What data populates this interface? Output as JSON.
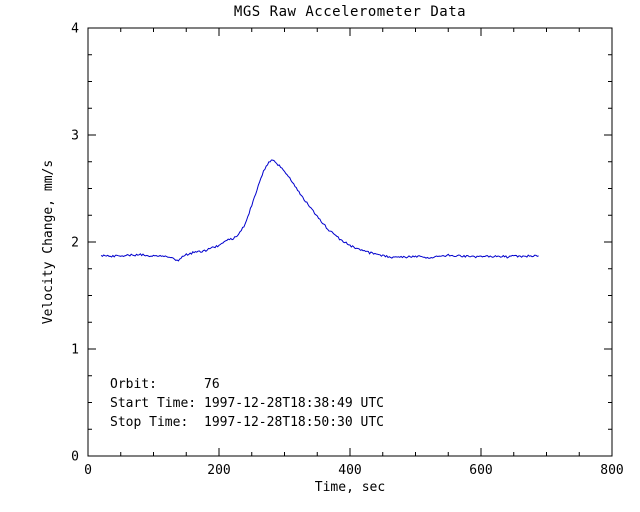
{
  "chart_data": {
    "type": "line",
    "title": "MGS Raw Accelerometer Data",
    "xlabel": "Time, sec",
    "ylabel": "Velocity Change, mm/s",
    "xlim": [
      0,
      800
    ],
    "ylim": [
      0,
      4
    ],
    "x_ticks": [
      0,
      200,
      400,
      600,
      800
    ],
    "y_ticks": [
      0,
      1,
      2,
      3,
      4
    ],
    "x_minor_step": 50,
    "y_minor_step": 0.25,
    "grid": false,
    "legend": "none",
    "line_color": "#0000cd",
    "noise_amplitude": 0.01,
    "series": [
      {
        "name": "velocity-change",
        "x": [
          20,
          40,
          60,
          80,
          100,
          110,
          120,
          128,
          134,
          140,
          146,
          152,
          160,
          170,
          180,
          190,
          200,
          208,
          214,
          220,
          226,
          232,
          238,
          244,
          250,
          256,
          262,
          268,
          272,
          276,
          280,
          284,
          288,
          292,
          296,
          300,
          306,
          312,
          318,
          324,
          330,
          338,
          346,
          354,
          362,
          370,
          378,
          386,
          394,
          402,
          410,
          420,
          430,
          440,
          450,
          460,
          470,
          480,
          490,
          500,
          510,
          520,
          530,
          540,
          550,
          560,
          570,
          580,
          590,
          600,
          610,
          620,
          630,
          640,
          650,
          660,
          670,
          680,
          688
        ],
        "y": [
          1.87,
          1.87,
          1.875,
          1.88,
          1.87,
          1.87,
          1.865,
          1.86,
          1.82,
          1.84,
          1.87,
          1.885,
          1.9,
          1.91,
          1.92,
          1.945,
          1.97,
          2.0,
          2.02,
          2.03,
          2.05,
          2.09,
          2.15,
          2.24,
          2.34,
          2.45,
          2.56,
          2.66,
          2.71,
          2.74,
          2.76,
          2.755,
          2.73,
          2.71,
          2.69,
          2.66,
          2.61,
          2.56,
          2.5,
          2.45,
          2.4,
          2.33,
          2.27,
          2.21,
          2.15,
          2.1,
          2.06,
          2.02,
          1.99,
          1.96,
          1.94,
          1.92,
          1.9,
          1.885,
          1.87,
          1.86,
          1.855,
          1.86,
          1.862,
          1.868,
          1.86,
          1.853,
          1.858,
          1.87,
          1.878,
          1.872,
          1.868,
          1.87,
          1.862,
          1.868,
          1.87,
          1.863,
          1.868,
          1.86,
          1.868,
          1.862,
          1.868,
          1.87,
          1.87
        ]
      }
    ]
  },
  "info_block": {
    "rows": [
      {
        "label": "Orbit:",
        "value": "76"
      },
      {
        "label": "Start Time:",
        "value": "1997-12-28T18:38:49 UTC"
      },
      {
        "label": "Stop Time:",
        "value": "1997-12-28T18:50:30 UTC"
      }
    ]
  }
}
